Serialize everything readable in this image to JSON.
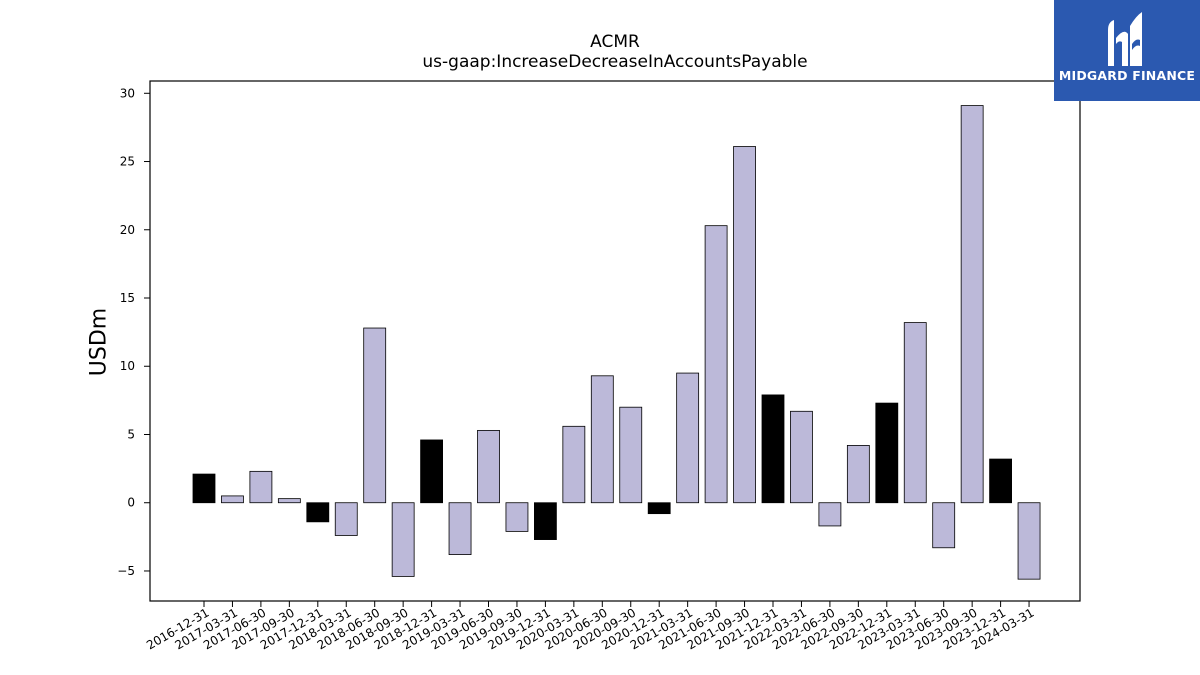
{
  "chart_data": {
    "type": "bar",
    "title": "ACMR",
    "subtitle": "us-gaap:IncreaseDecreaseInAccountsPayable",
    "ylabel": "USDm",
    "xlabel": "",
    "ylim": [
      -7.2,
      30.9
    ],
    "yticks": [
      -5,
      0,
      5,
      10,
      15,
      20,
      25,
      30
    ],
    "grid": false,
    "categories": [
      "2016-12-31",
      "2017-03-31",
      "2017-06-30",
      "2017-09-30",
      "2017-12-31",
      "2018-03-31",
      "2018-06-30",
      "2018-09-30",
      "2018-12-31",
      "2019-03-31",
      "2019-06-30",
      "2019-09-30",
      "2019-12-31",
      "2020-03-31",
      "2020-06-30",
      "2020-09-30",
      "2020-12-31",
      "2021-03-31",
      "2021-06-30",
      "2021-09-30",
      "2021-12-31",
      "2022-03-31",
      "2022-06-30",
      "2022-09-30",
      "2022-12-31",
      "2023-03-31",
      "2023-06-30",
      "2023-09-30",
      "2023-12-31",
      "2024-03-31"
    ],
    "values": [
      2.1,
      0.5,
      2.3,
      0.3,
      -1.4,
      -2.4,
      12.8,
      -5.4,
      4.6,
      -3.8,
      5.3,
      -2.1,
      -2.7,
      5.6,
      9.3,
      7.0,
      -0.8,
      9.5,
      20.3,
      26.1,
      7.9,
      6.7,
      -1.7,
      4.2,
      7.3,
      13.2,
      -3.3,
      29.1,
      3.2,
      -5.6
    ],
    "quarter_end_december": [
      true,
      false,
      false,
      false,
      true,
      false,
      false,
      false,
      true,
      false,
      false,
      false,
      true,
      false,
      false,
      false,
      true,
      false,
      false,
      false,
      true,
      false,
      false,
      false,
      true,
      false,
      false,
      false,
      true,
      false
    ],
    "colors": {
      "quarter": "#bcb9d9",
      "year_end": "#000000",
      "edge": "#000000"
    }
  },
  "logo": {
    "text": "MIDGARD FINANCE",
    "background": "#2b59b0"
  }
}
